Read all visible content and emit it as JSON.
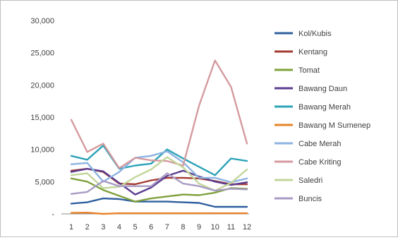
{
  "chart_data": {
    "type": "line",
    "title": "",
    "xlabel": "",
    "ylabel": "",
    "x": [
      1,
      2,
      3,
      4,
      5,
      6,
      7,
      8,
      9,
      10,
      11,
      12
    ],
    "x_tick_labels": [
      "1",
      "2",
      "3",
      "4",
      "5",
      "6",
      "7",
      "8",
      "9",
      "10",
      "11",
      "12"
    ],
    "ylim": [
      0,
      30000
    ],
    "y_ticks": [
      0,
      5000,
      10000,
      15000,
      20000,
      25000,
      30000
    ],
    "y_tick_labels": [
      "-",
      "5,000",
      "10,000",
      "15,000",
      "20,000",
      "25,000",
      "30,000"
    ],
    "grid": "none",
    "legend_position": "right",
    "series": [
      {
        "name": "Kol/Kubis",
        "color": "#2f5f9e",
        "values": [
          1600,
          1800,
          2400,
          2300,
          1900,
          1900,
          1900,
          1800,
          1700,
          1100,
          1100,
          1100
        ]
      },
      {
        "name": "Kentang",
        "color": "#a33b32",
        "values": [
          6700,
          7000,
          6500,
          4700,
          4600,
          5200,
          5600,
          5600,
          5500,
          5100,
          4600,
          4600
        ]
      },
      {
        "name": "Tomat",
        "color": "#7fa13b",
        "values": [
          5500,
          5000,
          3700,
          2800,
          1900,
          2400,
          2700,
          3000,
          2900,
          3300,
          4000,
          3900
        ]
      },
      {
        "name": "Bawang Daun",
        "color": "#5c3d8f",
        "values": [
          6500,
          7000,
          6600,
          4800,
          3000,
          4100,
          5900,
          6700,
          5800,
          5000,
          4500,
          4900
        ]
      },
      {
        "name": "Bawang Merah",
        "color": "#2da3b8",
        "values": [
          9000,
          8400,
          10600,
          7000,
          7500,
          7800,
          10000,
          8600,
          7300,
          6000,
          8600,
          8200
        ]
      },
      {
        "name": "Bawang M Sumenep",
        "color": "#e8832a",
        "values": [
          150,
          200,
          0,
          100,
          100,
          100,
          100,
          100,
          100,
          100,
          100,
          100
        ]
      },
      {
        "name": "Cabe Merah",
        "color": "#8db3e0",
        "values": [
          7700,
          7900,
          5000,
          6500,
          8700,
          9000,
          9700,
          8000,
          5600,
          5600,
          4900,
          5500
        ]
      },
      {
        "name": "Cabe Kriting",
        "color": "#d59a9f",
        "values": [
          14600,
          9600,
          10900,
          7100,
          8700,
          8300,
          8200,
          7500,
          16800,
          23800,
          19700,
          10900
        ]
      },
      {
        "name": "Saledri",
        "color": "#c2d69b",
        "values": [
          6000,
          6300,
          4000,
          4200,
          5700,
          6900,
          8800,
          7200,
          4700,
          3600,
          4800,
          6900
        ]
      },
      {
        "name": "Buncis",
        "color": "#a89bc4",
        "values": [
          3100,
          3400,
          5100,
          4300,
          4300,
          4300,
          6300,
          4700,
          4300,
          3600,
          3900,
          3800
        ]
      }
    ]
  }
}
